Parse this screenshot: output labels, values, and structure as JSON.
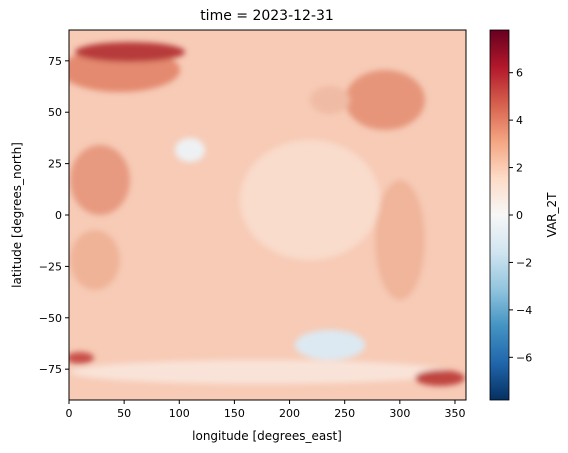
{
  "chart_data": {
    "type": "heatmap",
    "title": "time = 2023-12-31",
    "xlabel": "longitude [degrees_east]",
    "ylabel": "latitude [degrees_north]",
    "xlim": [
      0,
      360
    ],
    "ylim": [
      -90,
      90
    ],
    "x_ticks": [
      0,
      50,
      100,
      150,
      200,
      250,
      300,
      350
    ],
    "y_ticks": [
      -75,
      -50,
      -25,
      0,
      25,
      50,
      75
    ],
    "colorbar": {
      "label": "VAR_2T",
      "colormap": "RdBu_r",
      "range": [
        -7.8,
        7.8
      ],
      "ticks": [
        -6,
        -4,
        -2,
        0,
        2,
        4,
        6
      ]
    },
    "grid": false
  }
}
